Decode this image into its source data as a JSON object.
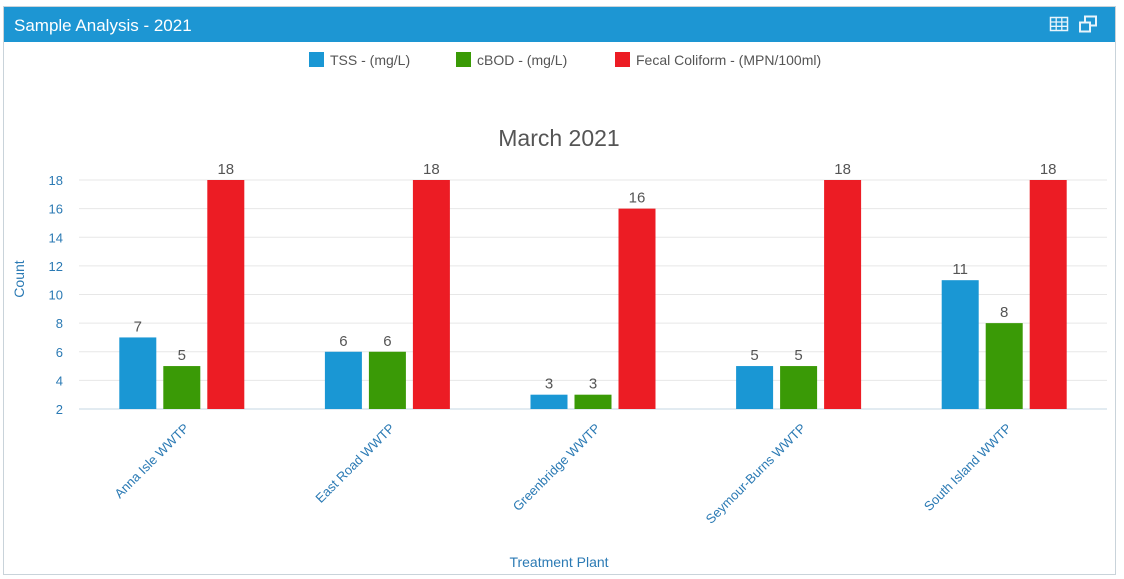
{
  "panel": {
    "title": "Sample Analysis - 2021",
    "icons": [
      "table-icon",
      "popout-icon"
    ]
  },
  "chart_data": {
    "type": "bar",
    "title": "March 2021",
    "xlabel": "Treatment Plant",
    "ylabel": "Count",
    "ylim": [
      2,
      18
    ],
    "yticks": [
      2,
      4,
      6,
      8,
      10,
      12,
      14,
      16,
      18
    ],
    "grid": true,
    "legend_position": "top",
    "categories": [
      "Anna Isle WWTP",
      "East Road WWTP",
      "Greenbridge WWTP",
      "Seymour-Burns WWTP",
      "South Island WWTP"
    ],
    "series": [
      {
        "name": "TSS - (mg/L)",
        "color": "#1a97d4",
        "values": [
          7,
          6,
          3,
          5,
          11
        ]
      },
      {
        "name": "cBOD - (mg/L)",
        "color": "#3a9a06",
        "values": [
          5,
          6,
          3,
          5,
          8
        ]
      },
      {
        "name": "Fecal Coliform - (MPN/100ml)",
        "color": "#ec1c24",
        "values": [
          18,
          18,
          16,
          18,
          18
        ]
      }
    ]
  }
}
